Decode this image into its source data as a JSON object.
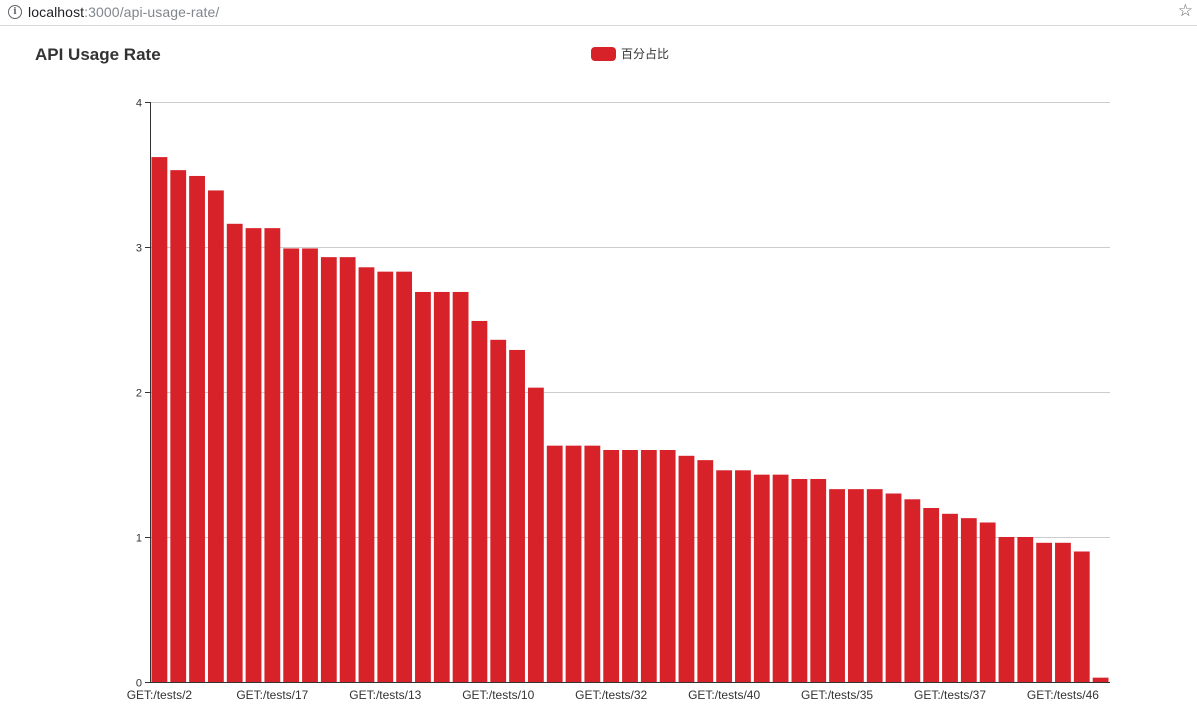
{
  "browser": {
    "url_host": "localhost",
    "url_path": ":3000/api-usage-rate/"
  },
  "colors": {
    "bar": "#d62228",
    "grid": "#cccccc",
    "axis": "#333333"
  },
  "chart_data": {
    "type": "bar",
    "title": "API Usage Rate",
    "series": [
      {
        "name": "百分占比",
        "values": [
          3.62,
          3.53,
          3.49,
          3.39,
          3.16,
          3.13,
          3.13,
          2.99,
          2.99,
          2.93,
          2.93,
          2.86,
          2.83,
          2.83,
          2.69,
          2.69,
          2.69,
          2.49,
          2.36,
          2.29,
          2.03,
          1.63,
          1.63,
          1.63,
          1.6,
          1.6,
          1.6,
          1.6,
          1.56,
          1.53,
          1.46,
          1.46,
          1.43,
          1.43,
          1.4,
          1.4,
          1.33,
          1.33,
          1.33,
          1.3,
          1.26,
          1.2,
          1.16,
          1.13,
          1.1,
          1.0,
          1.0,
          0.96,
          0.96,
          0.9,
          0.03
        ]
      }
    ],
    "x_tick_labels": [
      {
        "index": 0,
        "label": "GET:/tests/2"
      },
      {
        "index": 6,
        "label": "GET:/tests/17"
      },
      {
        "index": 12,
        "label": "GET:/tests/13"
      },
      {
        "index": 18,
        "label": "GET:/tests/10"
      },
      {
        "index": 24,
        "label": "GET:/tests/32"
      },
      {
        "index": 30,
        "label": "GET:/tests/40"
      },
      {
        "index": 36,
        "label": "GET:/tests/35"
      },
      {
        "index": 42,
        "label": "GET:/tests/37"
      },
      {
        "index": 48,
        "label": "GET:/tests/46"
      }
    ],
    "y_ticks": [
      "0",
      "1",
      "2",
      "3",
      "4"
    ],
    "ylim": [
      0,
      4
    ],
    "grid": true,
    "legend_position": "top-center"
  }
}
